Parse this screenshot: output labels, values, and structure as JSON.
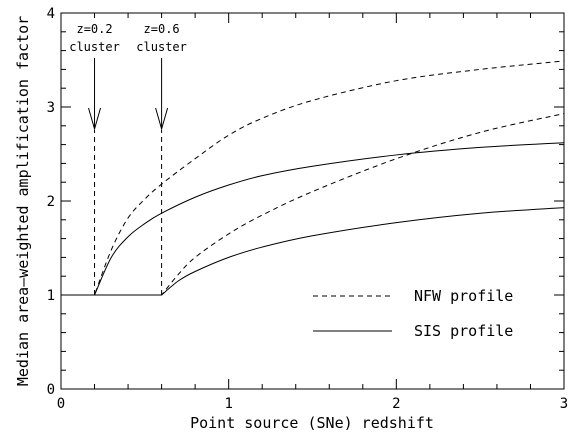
{
  "chart_data": {
    "type": "line",
    "title": "",
    "xlabel": "Point source (SNe) redshift",
    "ylabel": "Median area–weighted amplification factor",
    "xlim": [
      0,
      3
    ],
    "ylim": [
      0,
      4
    ],
    "x_ticks": [
      "0",
      "1",
      "2",
      "3"
    ],
    "y_ticks": [
      "0",
      "1",
      "2",
      "3",
      "4"
    ],
    "grid": false,
    "legend_position": "bottom-right",
    "legend": [
      {
        "label": "NFW profile",
        "style": "dashed"
      },
      {
        "label": "SIS profile",
        "style": "solid"
      }
    ],
    "annotations": [
      {
        "line1": "z=0.2",
        "line2": "cluster",
        "x": 0.2
      },
      {
        "line1": "z=0.6",
        "line2": "cluster",
        "x": 0.6
      }
    ],
    "series": [
      {
        "profile": "NFW",
        "cluster_z": 0.2,
        "style": "dashed",
        "x": [
          0,
          0.2,
          0.3,
          0.4,
          0.5,
          0.6,
          0.8,
          1.0,
          1.2,
          1.5,
          2.0,
          2.5,
          3.0
        ],
        "y": [
          1.0,
          1.0,
          1.48,
          1.82,
          2.02,
          2.18,
          2.45,
          2.7,
          2.88,
          3.07,
          3.28,
          3.4,
          3.49
        ]
      },
      {
        "profile": "SIS",
        "cluster_z": 0.2,
        "style": "solid",
        "x": [
          0,
          0.2,
          0.3,
          0.4,
          0.5,
          0.6,
          0.8,
          1.0,
          1.2,
          1.5,
          2.0,
          2.5,
          3.0
        ],
        "y": [
          1.0,
          1.0,
          1.4,
          1.62,
          1.76,
          1.87,
          2.04,
          2.17,
          2.27,
          2.37,
          2.49,
          2.57,
          2.62
        ]
      },
      {
        "profile": "NFW",
        "cluster_z": 0.6,
        "style": "dashed",
        "x": [
          0,
          0.6,
          0.7,
          0.8,
          1.0,
          1.2,
          1.5,
          2.0,
          2.5,
          3.0
        ],
        "y": [
          1.0,
          1.0,
          1.22,
          1.4,
          1.65,
          1.85,
          2.1,
          2.45,
          2.73,
          2.93
        ]
      },
      {
        "profile": "SIS",
        "cluster_z": 0.6,
        "style": "solid",
        "x": [
          0,
          0.6,
          0.7,
          0.8,
          1.0,
          1.2,
          1.5,
          2.0,
          2.5,
          3.0
        ],
        "y": [
          1.0,
          1.0,
          1.15,
          1.25,
          1.4,
          1.51,
          1.63,
          1.77,
          1.87,
          1.93
        ]
      }
    ]
  }
}
